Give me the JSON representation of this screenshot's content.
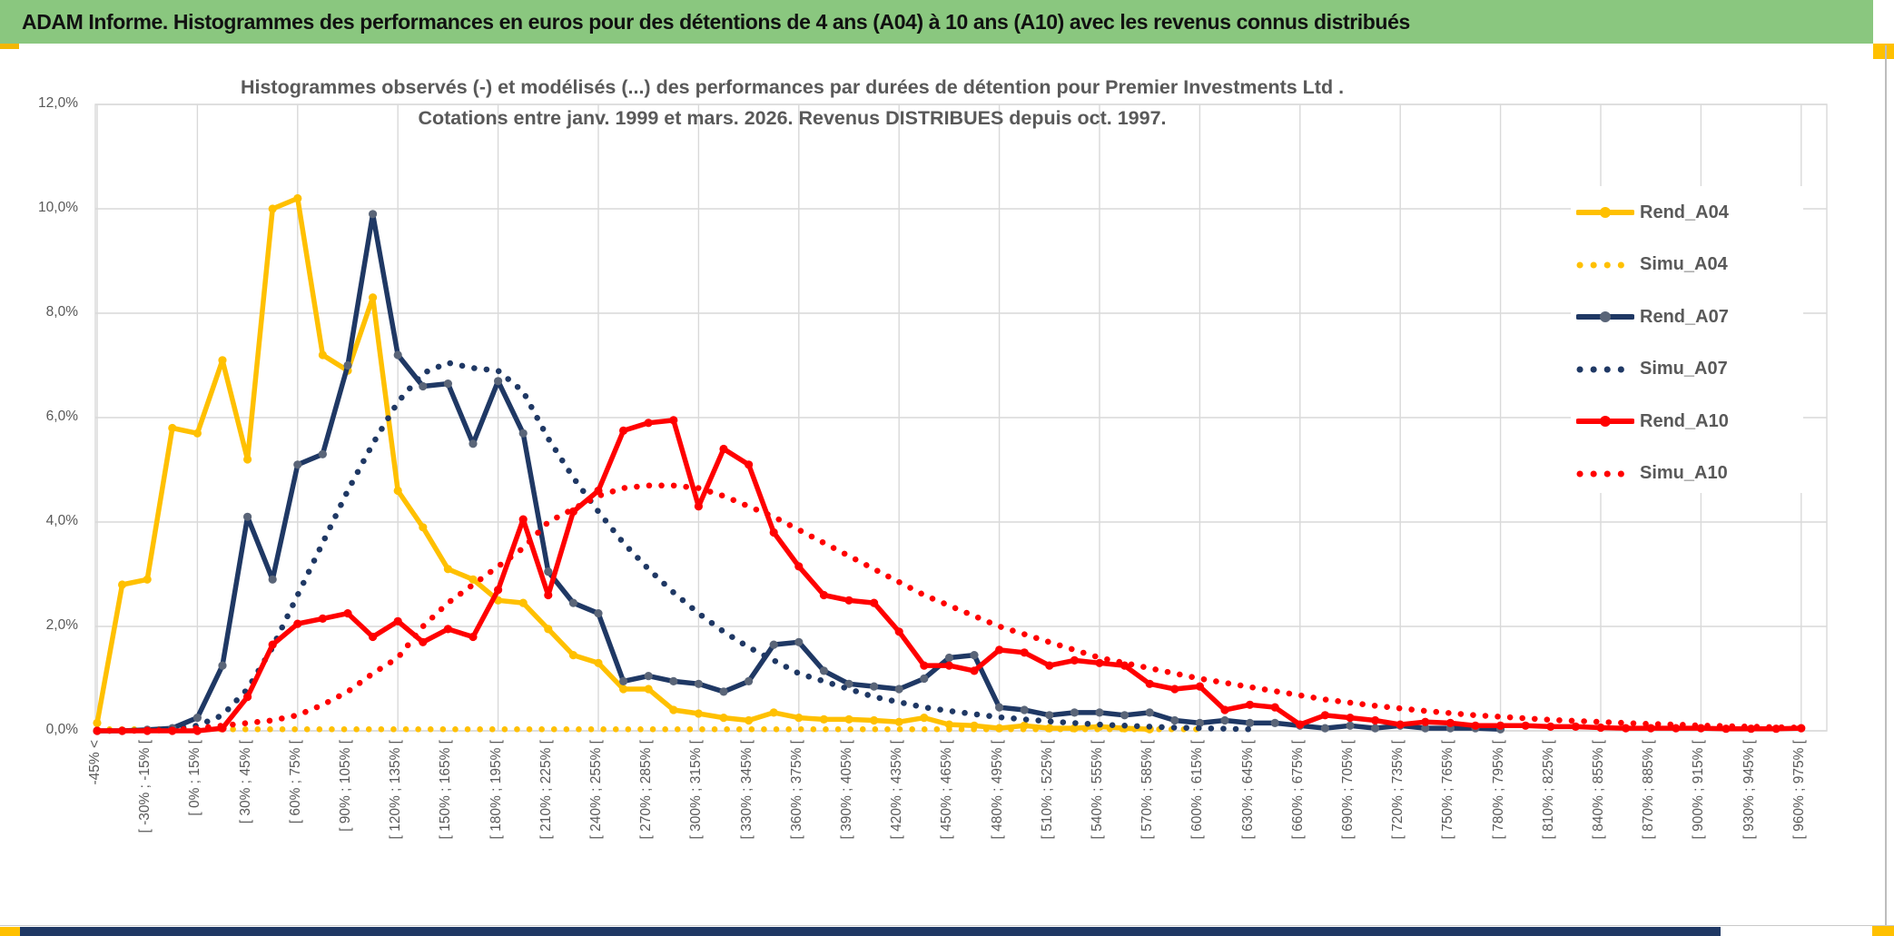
{
  "header": {
    "title": "ADAM Informe. Histogrammes des performances en euros pour des détentions de 4 ans (A04) à 10 ans (A10) avec les revenus connus distribués",
    "bg_color": "#8AC77F",
    "accent_color": "#FFC000",
    "footer_color": "#1F3864"
  },
  "chart_data": {
    "type": "line",
    "title_line1": "Histogrammes observés (-) et modélisés (...) des performances par durées de détention pour Premier Investments Ltd .",
    "title_line2": "Cotations entre janv. 1999 et mars. 2026. Revenus DISTRIBUES depuis oct. 1997.",
    "ylabel": "",
    "xlabel": "",
    "ylim_percent": [
      0,
      12
    ],
    "grid": true,
    "legend_position": "right-inside",
    "y_tick_labels": [
      "0,0%",
      "2,0%",
      "4,0%",
      "6,0%",
      "8,0%",
      "10,0%",
      "12,0%"
    ],
    "x_tick_labels": [
      "-45% <",
      "[ -30% ; -15% [",
      "[ 0% ; 15% [",
      "[ 30% ; 45% [",
      "[ 60% ; 75% [",
      "[ 90% ; 105% [",
      "[ 120% ; 135% [",
      "[ 150% ; 165% [",
      "[ 180% ; 195% [",
      "[ 210% ; 225% [",
      "[ 240% ; 255% [",
      "[ 270% ; 285% [",
      "[ 300% ; 315% [",
      "[ 330% ; 345% [",
      "[ 360% ; 375% [",
      "[ 390% ; 405% [",
      "[ 420% ; 435% [",
      "[ 450% ; 465% [",
      "[ 480% ; 495% [",
      "[ 510% ; 525% [",
      "[ 540% ; 555% [",
      "[ 570% ; 585% [",
      "[ 600% ; 615% [",
      "[ 630% ; 645% [",
      "[ 660% ; 675% [",
      "[ 690% ; 705% [",
      "[ 720% ; 735% [",
      "[ 750% ; 765% [",
      "[ 780% ; 795% [",
      "[ 810% ; 825% [",
      "[ 840% ; 855% [",
      "[ 870% ; 885% [",
      "[ 900% ; 915% [",
      "[ 930% ; 945% [",
      "[ 960% ; 975% ["
    ],
    "x_bins_per_label": 2,
    "num_bins": 69,
    "series": [
      {
        "name": "Rend_A04",
        "color": "#FFC000",
        "style": "solid",
        "marker_color": "#FFC000",
        "values_percent": [
          0.15,
          2.8,
          2.9,
          5.8,
          5.7,
          7.1,
          5.2,
          10.0,
          10.2,
          7.2,
          6.9,
          8.3,
          4.6,
          3.9,
          3.1,
          2.9,
          2.5,
          2.45,
          1.95,
          1.45,
          1.3,
          0.8,
          0.8,
          0.4,
          0.33,
          0.25,
          0.2,
          0.35,
          0.25,
          0.22,
          0.22,
          0.2,
          0.17,
          0.25,
          0.12,
          0.1,
          0.05,
          0.1,
          0.05,
          0.05,
          0.08,
          0.05,
          0.03,
          null,
          null,
          null,
          null,
          null,
          null,
          null,
          null,
          null,
          null,
          null,
          null,
          null,
          null,
          null,
          null,
          null,
          null,
          null,
          null,
          null,
          null,
          null,
          null,
          null,
          null
        ]
      },
      {
        "name": "Simu_A04",
        "color": "#FFC000",
        "style": "dotted",
        "values_percent": [
          0.03,
          0.03,
          0.03,
          0.03,
          0.03,
          0.03,
          0.03,
          0.03,
          0.03,
          0.03,
          0.03,
          0.03,
          0.03,
          0.03,
          0.03,
          0.03,
          0.03,
          0.03,
          0.03,
          0.03,
          0.03,
          0.03,
          0.03,
          0.03,
          0.03,
          0.03,
          0.03,
          0.03,
          0.03,
          0.03,
          0.03,
          0.03,
          0.03,
          0.03,
          0.03,
          0.03,
          0.03,
          0.03,
          0.03,
          0.03,
          0.03,
          0.03,
          0.03,
          0.03,
          0.03,
          null,
          null,
          null,
          null,
          null,
          null,
          null,
          null,
          null,
          null,
          null,
          null,
          null,
          null,
          null,
          null,
          null,
          null,
          null,
          null,
          null,
          null,
          null,
          null
        ]
      },
      {
        "name": "Rend_A07",
        "color": "#1F3864",
        "style": "solid",
        "marker_color": "#5A6578",
        "values_percent": [
          0,
          0,
          0.02,
          0.05,
          0.25,
          1.25,
          4.1,
          2.9,
          5.1,
          5.3,
          7.0,
          9.9,
          7.2,
          6.6,
          6.65,
          5.5,
          6.7,
          5.7,
          3.05,
          2.45,
          2.25,
          0.95,
          1.05,
          0.95,
          0.9,
          0.75,
          0.95,
          1.65,
          1.7,
          1.15,
          0.9,
          0.85,
          0.8,
          1.0,
          1.4,
          1.45,
          0.45,
          0.4,
          0.3,
          0.35,
          0.35,
          0.3,
          0.35,
          0.2,
          0.15,
          0.2,
          0.15,
          0.15,
          0.1,
          0.05,
          0.1,
          0.05,
          0.1,
          0.05,
          0.05,
          0.05,
          0.03,
          null,
          null,
          null,
          null,
          null,
          null,
          null,
          null,
          null,
          null,
          null,
          null
        ]
      },
      {
        "name": "Simu_A07",
        "color": "#1F3864",
        "style": "dotted",
        "values_percent": [
          0,
          0,
          0.01,
          0.03,
          0.1,
          0.3,
          0.8,
          1.6,
          2.6,
          3.6,
          4.6,
          5.5,
          6.3,
          6.85,
          7.05,
          6.95,
          6.9,
          6.5,
          5.6,
          4.85,
          4.2,
          3.6,
          3.1,
          2.65,
          2.25,
          1.9,
          1.6,
          1.35,
          1.1,
          0.95,
          0.8,
          0.65,
          0.55,
          0.45,
          0.38,
          0.32,
          0.26,
          0.22,
          0.18,
          0.15,
          0.12,
          0.1,
          0.08,
          0.06,
          0.05,
          0.04,
          0.03,
          null,
          null,
          null,
          null,
          null,
          null,
          null,
          null,
          null,
          null,
          null,
          null,
          null,
          null,
          null,
          null,
          null,
          null,
          null,
          null,
          null,
          null
        ]
      },
      {
        "name": "Rend_A10",
        "color": "#FF0000",
        "style": "solid",
        "marker_color": "#FF0000",
        "values_percent": [
          0,
          0,
          0,
          0,
          0,
          0.05,
          0.65,
          1.65,
          2.05,
          2.15,
          2.25,
          1.8,
          2.1,
          1.7,
          1.95,
          1.8,
          2.7,
          4.05,
          2.6,
          4.2,
          4.6,
          5.75,
          5.9,
          5.95,
          4.3,
          5.4,
          5.1,
          3.8,
          3.15,
          2.6,
          2.5,
          2.45,
          1.9,
          1.25,
          1.25,
          1.15,
          1.55,
          1.5,
          1.25,
          1.35,
          1.3,
          1.25,
          0.9,
          0.8,
          0.85,
          0.4,
          0.5,
          0.45,
          0.12,
          0.3,
          0.25,
          0.2,
          0.12,
          0.17,
          0.15,
          0.1,
          0.1,
          0.1,
          0.08,
          0.08,
          0.06,
          0.05,
          0.05,
          0.05,
          0.05,
          0.04,
          0.04,
          0.04,
          0.05
        ]
      },
      {
        "name": "Simu_A10",
        "color": "#FF0000",
        "style": "dotted",
        "values_percent": [
          0,
          0,
          0,
          0.02,
          0.05,
          0.1,
          0.15,
          0.2,
          0.3,
          0.5,
          0.75,
          1.1,
          1.4,
          2.0,
          2.45,
          2.8,
          3.15,
          3.5,
          4.0,
          4.25,
          4.5,
          4.65,
          4.7,
          4.7,
          4.65,
          4.5,
          4.3,
          4.1,
          3.85,
          3.6,
          3.35,
          3.1,
          2.85,
          2.6,
          2.4,
          2.2,
          2.0,
          1.85,
          1.7,
          1.55,
          1.4,
          1.3,
          1.2,
          1.1,
          1.0,
          0.92,
          0.84,
          0.76,
          0.68,
          0.6,
          0.54,
          0.48,
          0.43,
          0.38,
          0.34,
          0.3,
          0.27,
          0.24,
          0.21,
          0.19,
          0.17,
          0.15,
          0.13,
          0.12,
          0.1,
          0.09,
          0.08,
          0.07,
          0.06
        ]
      }
    ],
    "legend_entries": [
      "Rend_A04",
      "Simu_A04",
      "Rend_A07",
      "Simu_A07",
      "Rend_A10",
      "Simu_A10"
    ]
  }
}
